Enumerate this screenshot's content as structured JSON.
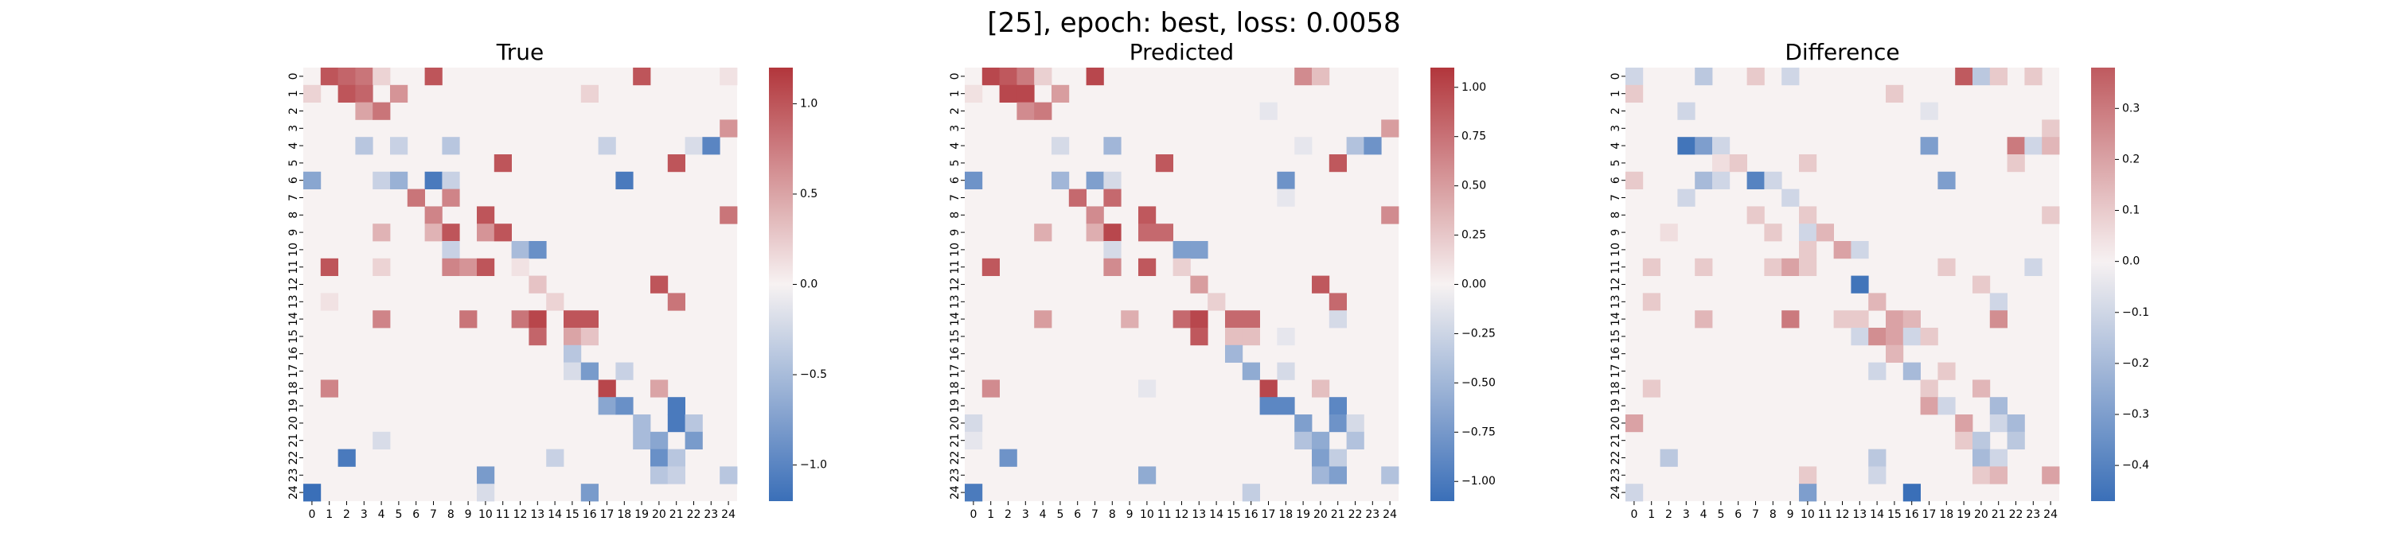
{
  "figure": {
    "suptitle": "[25], epoch: best, loss: 0.0058"
  },
  "colors": {
    "negative": "#3a6fb8",
    "neutral": "#f7f2f2",
    "positive": "#b2363c"
  },
  "chart_data": [
    {
      "type": "heatmap",
      "title": "True",
      "n": 25,
      "tick_labels": [
        "0",
        "1",
        "2",
        "3",
        "4",
        "5",
        "6",
        "7",
        "8",
        "9",
        "10",
        "11",
        "12",
        "13",
        "14",
        "15",
        "16",
        "17",
        "18",
        "19",
        "20",
        "21",
        "22",
        "23",
        "24"
      ],
      "colorbar_range": [
        -1.2,
        1.2
      ],
      "colorbar_ticks": [
        -1.0,
        -0.5,
        0.0,
        0.5,
        1.0
      ],
      "colorbar_tick_labels": [
        "−1.0",
        "−0.5",
        "0.0",
        "0.5",
        "1.0"
      ],
      "cells": [
        [
          0,
          1,
          1.0
        ],
        [
          0,
          2,
          0.9
        ],
        [
          0,
          3,
          0.8
        ],
        [
          0,
          4,
          0.2
        ],
        [
          0,
          7,
          1.0
        ],
        [
          0,
          19,
          1.0
        ],
        [
          0,
          24,
          0.1
        ],
        [
          1,
          0,
          0.2
        ],
        [
          1,
          2,
          1.0
        ],
        [
          1,
          3,
          0.9
        ],
        [
          1,
          5,
          0.6
        ],
        [
          1,
          16,
          0.2
        ],
        [
          2,
          3,
          0.5
        ],
        [
          2,
          4,
          0.8
        ],
        [
          3,
          24,
          0.6
        ],
        [
          4,
          3,
          -0.4
        ],
        [
          4,
          5,
          -0.3
        ],
        [
          4,
          8,
          -0.4
        ],
        [
          4,
          17,
          -0.3
        ],
        [
          4,
          22,
          -0.2
        ],
        [
          4,
          23,
          -1.0
        ],
        [
          5,
          11,
          1.0
        ],
        [
          5,
          21,
          1.0
        ],
        [
          6,
          0,
          -0.7
        ],
        [
          6,
          4,
          -0.3
        ],
        [
          6,
          5,
          -0.6
        ],
        [
          6,
          7,
          -1.1
        ],
        [
          6,
          8,
          -0.3
        ],
        [
          6,
          18,
          -1.1
        ],
        [
          7,
          6,
          0.8
        ],
        [
          7,
          8,
          0.7
        ],
        [
          8,
          7,
          0.7
        ],
        [
          8,
          10,
          1.0
        ],
        [
          8,
          24,
          0.8
        ],
        [
          9,
          4,
          0.4
        ],
        [
          9,
          7,
          0.4
        ],
        [
          9,
          8,
          1.0
        ],
        [
          9,
          10,
          0.6
        ],
        [
          9,
          11,
          1.0
        ],
        [
          10,
          8,
          -0.3
        ],
        [
          10,
          12,
          -0.5
        ],
        [
          10,
          13,
          -0.9
        ],
        [
          11,
          1,
          1.0
        ],
        [
          11,
          4,
          0.2
        ],
        [
          11,
          8,
          0.7
        ],
        [
          11,
          9,
          0.6
        ],
        [
          11,
          10,
          1.0
        ],
        [
          11,
          12,
          0.1
        ],
        [
          12,
          13,
          0.3
        ],
        [
          12,
          20,
          1.0
        ],
        [
          13,
          1,
          0.1
        ],
        [
          13,
          14,
          0.2
        ],
        [
          13,
          21,
          0.8
        ],
        [
          14,
          4,
          0.7
        ],
        [
          14,
          9,
          0.8
        ],
        [
          14,
          12,
          0.8
        ],
        [
          14,
          13,
          1.1
        ],
        [
          14,
          15,
          1.0
        ],
        [
          14,
          16,
          1.0
        ],
        [
          15,
          13,
          0.9
        ],
        [
          15,
          15,
          0.5
        ],
        [
          15,
          16,
          0.3
        ],
        [
          16,
          15,
          -0.4
        ],
        [
          17,
          15,
          -0.2
        ],
        [
          17,
          16,
          -0.8
        ],
        [
          17,
          18,
          -0.3
        ],
        [
          18,
          1,
          0.7
        ],
        [
          18,
          17,
          1.1
        ],
        [
          18,
          20,
          0.5
        ],
        [
          19,
          17,
          -0.7
        ],
        [
          19,
          18,
          -0.9
        ],
        [
          19,
          21,
          -1.1
        ],
        [
          20,
          19,
          -0.5
        ],
        [
          20,
          21,
          -1.1
        ],
        [
          20,
          22,
          -0.4
        ],
        [
          21,
          4,
          -0.2
        ],
        [
          21,
          19,
          -0.5
        ],
        [
          21,
          20,
          -0.7
        ],
        [
          21,
          22,
          -0.8
        ],
        [
          22,
          2,
          -1.1
        ],
        [
          22,
          14,
          -0.3
        ],
        [
          22,
          20,
          -0.9
        ],
        [
          22,
          21,
          -0.4
        ],
        [
          23,
          10,
          -0.8
        ],
        [
          23,
          20,
          -0.4
        ],
        [
          23,
          21,
          -0.3
        ],
        [
          23,
          24,
          -0.4
        ],
        [
          24,
          0,
          -1.2
        ],
        [
          24,
          10,
          -0.2
        ],
        [
          24,
          16,
          -0.8
        ]
      ]
    },
    {
      "type": "heatmap",
      "title": "Predicted",
      "n": 25,
      "tick_labels": [
        "0",
        "1",
        "2",
        "3",
        "4",
        "5",
        "6",
        "7",
        "8",
        "9",
        "10",
        "11",
        "12",
        "13",
        "14",
        "15",
        "16",
        "17",
        "18",
        "19",
        "20",
        "21",
        "22",
        "23",
        "24"
      ],
      "colorbar_range": [
        -1.1,
        1.1
      ],
      "colorbar_ticks": [
        -1.0,
        -0.75,
        -0.5,
        -0.25,
        0.0,
        0.25,
        0.5,
        0.75,
        1.0
      ],
      "colorbar_tick_labels": [
        "−1.00",
        "−0.75",
        "−0.50",
        "−0.25",
        "0.00",
        "0.25",
        "0.50",
        "0.75",
        "1.00"
      ],
      "cells": [
        [
          0,
          1,
          1.0
        ],
        [
          0,
          2,
          0.9
        ],
        [
          0,
          3,
          0.7
        ],
        [
          0,
          4,
          0.2
        ],
        [
          0,
          7,
          1.0
        ],
        [
          0,
          19,
          0.6
        ],
        [
          0,
          20,
          0.3
        ],
        [
          1,
          0,
          0.1
        ],
        [
          1,
          2,
          1.0
        ],
        [
          1,
          3,
          1.0
        ],
        [
          1,
          5,
          0.5
        ],
        [
          2,
          3,
          0.6
        ],
        [
          2,
          4,
          0.7
        ],
        [
          2,
          17,
          -0.1
        ],
        [
          3,
          24,
          0.5
        ],
        [
          4,
          5,
          -0.2
        ],
        [
          4,
          8,
          -0.5
        ],
        [
          4,
          19,
          -0.1
        ],
        [
          4,
          22,
          -0.4
        ],
        [
          4,
          23,
          -0.8
        ],
        [
          5,
          11,
          0.9
        ],
        [
          5,
          21,
          0.9
        ],
        [
          6,
          0,
          -0.8
        ],
        [
          6,
          5,
          -0.5
        ],
        [
          6,
          7,
          -0.7
        ],
        [
          6,
          8,
          -0.2
        ],
        [
          6,
          18,
          -0.8
        ],
        [
          7,
          6,
          0.8
        ],
        [
          7,
          8,
          0.8
        ],
        [
          7,
          18,
          -0.1
        ],
        [
          8,
          7,
          0.6
        ],
        [
          8,
          10,
          0.9
        ],
        [
          8,
          24,
          0.6
        ],
        [
          9,
          4,
          0.4
        ],
        [
          9,
          7,
          0.4
        ],
        [
          9,
          8,
          1.0
        ],
        [
          9,
          10,
          0.8
        ],
        [
          9,
          11,
          0.8
        ],
        [
          10,
          8,
          -0.2
        ],
        [
          10,
          12,
          -0.7
        ],
        [
          10,
          13,
          -0.7
        ],
        [
          11,
          1,
          0.9
        ],
        [
          11,
          8,
          0.6
        ],
        [
          11,
          10,
          0.9
        ],
        [
          11,
          12,
          0.2
        ],
        [
          12,
          13,
          0.5
        ],
        [
          12,
          20,
          0.9
        ],
        [
          13,
          14,
          0.2
        ],
        [
          13,
          21,
          0.8
        ],
        [
          14,
          4,
          0.5
        ],
        [
          14,
          9,
          0.4
        ],
        [
          14,
          12,
          0.8
        ],
        [
          14,
          13,
          1.0
        ],
        [
          14,
          15,
          0.8
        ],
        [
          14,
          16,
          0.8
        ],
        [
          14,
          21,
          -0.2
        ],
        [
          15,
          13,
          0.9
        ],
        [
          15,
          15,
          0.3
        ],
        [
          15,
          16,
          0.3
        ],
        [
          15,
          18,
          -0.1
        ],
        [
          16,
          15,
          -0.5
        ],
        [
          17,
          16,
          -0.6
        ],
        [
          17,
          18,
          -0.2
        ],
        [
          18,
          1,
          0.6
        ],
        [
          18,
          10,
          -0.1
        ],
        [
          18,
          17,
          1.0
        ],
        [
          18,
          20,
          0.3
        ],
        [
          19,
          17,
          -0.9
        ],
        [
          19,
          18,
          -0.9
        ],
        [
          19,
          21,
          -0.9
        ],
        [
          20,
          0,
          -0.2
        ],
        [
          20,
          19,
          -0.7
        ],
        [
          20,
          21,
          -0.8
        ],
        [
          20,
          22,
          -0.2
        ],
        [
          21,
          0,
          -0.1
        ],
        [
          21,
          19,
          -0.4
        ],
        [
          21,
          20,
          -0.6
        ],
        [
          21,
          22,
          -0.4
        ],
        [
          22,
          2,
          -0.8
        ],
        [
          22,
          20,
          -0.7
        ],
        [
          22,
          21,
          -0.3
        ],
        [
          23,
          10,
          -0.6
        ],
        [
          23,
          20,
          -0.5
        ],
        [
          23,
          21,
          -0.7
        ],
        [
          23,
          24,
          -0.4
        ],
        [
          24,
          0,
          -1.0
        ],
        [
          24,
          16,
          -0.3
        ]
      ]
    },
    {
      "type": "heatmap",
      "title": "Difference",
      "n": 25,
      "tick_labels": [
        "0",
        "1",
        "2",
        "3",
        "4",
        "5",
        "6",
        "7",
        "8",
        "9",
        "10",
        "11",
        "12",
        "13",
        "14",
        "15",
        "16",
        "17",
        "18",
        "19",
        "20",
        "21",
        "22",
        "23",
        "24"
      ],
      "colorbar_range": [
        -0.47,
        0.38
      ],
      "colorbar_ticks": [
        -0.4,
        -0.3,
        -0.2,
        -0.1,
        0.0,
        0.1,
        0.2,
        0.3
      ],
      "colorbar_tick_labels": [
        "−0.4",
        "−0.3",
        "−0.2",
        "−0.1",
        "0.0",
        "0.1",
        "0.2",
        "0.3"
      ],
      "cells": [
        [
          0,
          0,
          -0.1
        ],
        [
          0,
          4,
          -0.15
        ],
        [
          0,
          7,
          0.1
        ],
        [
          0,
          9,
          -0.1
        ],
        [
          0,
          19,
          0.38
        ],
        [
          0,
          20,
          -0.15
        ],
        [
          0,
          21,
          0.1
        ],
        [
          0,
          23,
          0.1
        ],
        [
          1,
          0,
          0.1
        ],
        [
          1,
          15,
          0.1
        ],
        [
          2,
          3,
          -0.1
        ],
        [
          2,
          17,
          -0.05
        ],
        [
          3,
          24,
          0.1
        ],
        [
          4,
          3,
          -0.45
        ],
        [
          4,
          4,
          -0.3
        ],
        [
          4,
          5,
          -0.1
        ],
        [
          4,
          17,
          -0.3
        ],
        [
          4,
          22,
          0.3
        ],
        [
          4,
          23,
          -0.1
        ],
        [
          4,
          24,
          0.15
        ],
        [
          5,
          5,
          0.05
        ],
        [
          5,
          6,
          0.1
        ],
        [
          5,
          10,
          0.1
        ],
        [
          5,
          22,
          0.1
        ],
        [
          6,
          0,
          0.1
        ],
        [
          6,
          4,
          -0.2
        ],
        [
          6,
          5,
          -0.1
        ],
        [
          6,
          7,
          -0.4
        ],
        [
          6,
          8,
          -0.1
        ],
        [
          6,
          18,
          -0.3
        ],
        [
          7,
          3,
          -0.1
        ],
        [
          7,
          9,
          -0.1
        ],
        [
          8,
          7,
          0.1
        ],
        [
          8,
          10,
          0.1
        ],
        [
          8,
          24,
          0.1
        ],
        [
          9,
          2,
          0.05
        ],
        [
          9,
          8,
          0.1
        ],
        [
          9,
          10,
          -0.1
        ],
        [
          9,
          11,
          0.15
        ],
        [
          10,
          10,
          0.1
        ],
        [
          10,
          12,
          0.2
        ],
        [
          10,
          13,
          -0.1
        ],
        [
          11,
          1,
          0.1
        ],
        [
          11,
          4,
          0.1
        ],
        [
          11,
          8,
          0.1
        ],
        [
          11,
          9,
          0.2
        ],
        [
          11,
          10,
          0.1
        ],
        [
          11,
          18,
          0.1
        ],
        [
          11,
          23,
          -0.1
        ],
        [
          12,
          13,
          -0.45
        ],
        [
          12,
          20,
          0.1
        ],
        [
          13,
          1,
          0.1
        ],
        [
          13,
          14,
          0.15
        ],
        [
          13,
          21,
          -0.1
        ],
        [
          14,
          4,
          0.15
        ],
        [
          14,
          9,
          0.3
        ],
        [
          14,
          12,
          0.1
        ],
        [
          14,
          13,
          0.1
        ],
        [
          14,
          15,
          0.2
        ],
        [
          14,
          16,
          0.15
        ],
        [
          14,
          21,
          0.25
        ],
        [
          15,
          13,
          -0.1
        ],
        [
          15,
          14,
          0.25
        ],
        [
          15,
          15,
          0.2
        ],
        [
          15,
          16,
          -0.1
        ],
        [
          15,
          17,
          0.1
        ],
        [
          16,
          15,
          0.15
        ],
        [
          17,
          14,
          -0.1
        ],
        [
          17,
          16,
          -0.2
        ],
        [
          17,
          18,
          0.1
        ],
        [
          18,
          1,
          0.1
        ],
        [
          18,
          17,
          0.1
        ],
        [
          18,
          20,
          0.15
        ],
        [
          19,
          17,
          0.2
        ],
        [
          19,
          18,
          -0.1
        ],
        [
          19,
          21,
          -0.2
        ],
        [
          20,
          0,
          0.2
        ],
        [
          20,
          19,
          0.2
        ],
        [
          20,
          21,
          -0.1
        ],
        [
          20,
          22,
          -0.2
        ],
        [
          21,
          19,
          0.1
        ],
        [
          21,
          20,
          -0.15
        ],
        [
          21,
          22,
          -0.15
        ],
        [
          22,
          2,
          -0.15
        ],
        [
          22,
          14,
          -0.15
        ],
        [
          22,
          20,
          -0.2
        ],
        [
          22,
          21,
          -0.1
        ],
        [
          23,
          10,
          0.1
        ],
        [
          23,
          14,
          -0.1
        ],
        [
          23,
          20,
          0.1
        ],
        [
          23,
          21,
          0.15
        ],
        [
          23,
          24,
          0.2
        ],
        [
          24,
          0,
          -0.1
        ],
        [
          24,
          10,
          -0.3
        ],
        [
          24,
          16,
          -0.47
        ]
      ]
    }
  ]
}
